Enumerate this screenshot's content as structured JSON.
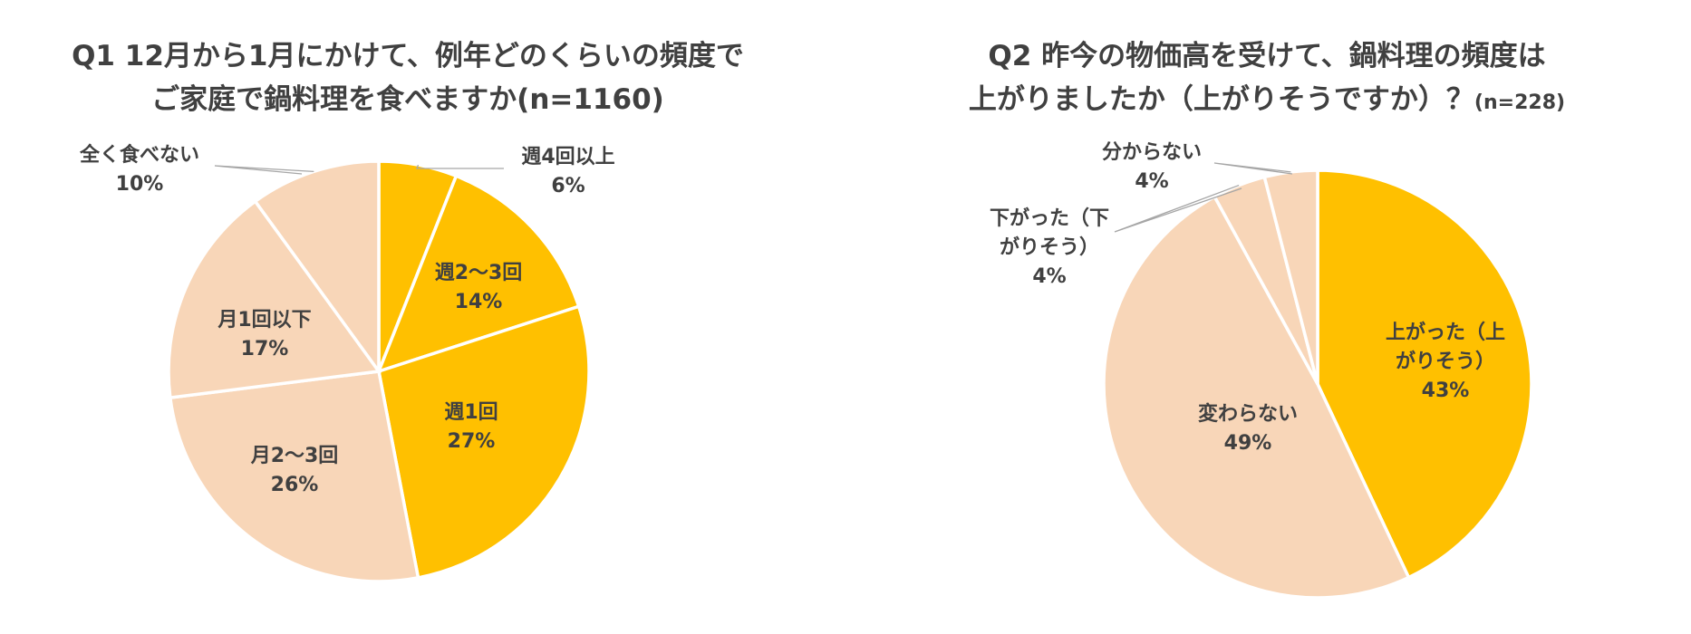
{
  "chart_data": [
    {
      "type": "pie",
      "title_line1": "Q1 12月から1月にかけて、例年どのくらいの頻度で",
      "title_line2": "ご家庭で鍋料理を食べますか(n=1160)",
      "slices": [
        {
          "label": "週4回以上",
          "label_line2": "",
          "value": 6,
          "value_label": "6%",
          "color": "#FFC000"
        },
        {
          "label": "週2～3回",
          "label_line2": "",
          "value": 14,
          "value_label": "14%",
          "color": "#FFC000"
        },
        {
          "label": "週1回",
          "label_line2": "",
          "value": 27,
          "value_label": "27%",
          "color": "#FFC000"
        },
        {
          "label": "月2～3回",
          "label_line2": "",
          "value": 26,
          "value_label": "26%",
          "color": "#F8D6B8"
        },
        {
          "label": "月1回以下",
          "label_line2": "",
          "value": 17,
          "value_label": "17%",
          "color": "#F8D6B8"
        },
        {
          "label": "全く食べない",
          "label_line2": "",
          "value": 10,
          "value_label": "10%",
          "color": "#F8D6B8"
        }
      ]
    },
    {
      "type": "pie",
      "title_line1": "Q2 昨今の物価高を受けて、鍋料理の頻度は",
      "title_line2": "上がりましたか（上がりそうですか）？",
      "title_suffix": "(n=228)",
      "slices": [
        {
          "label": "上がった（上",
          "label_line2": "がりそう）",
          "value": 43,
          "value_label": "43%",
          "color": "#FFC000"
        },
        {
          "label": "変わらない",
          "label_line2": "",
          "value": 49,
          "value_label": "49%",
          "color": "#F8D6B8"
        },
        {
          "label": "下がった（下",
          "label_line2": "がりそう）",
          "value": 4,
          "value_label": "4%",
          "color": "#F8D6B8"
        },
        {
          "label": "分からない",
          "label_line2": "",
          "value": 4,
          "value_label": "4%",
          "color": "#F8D6B8"
        }
      ]
    }
  ]
}
